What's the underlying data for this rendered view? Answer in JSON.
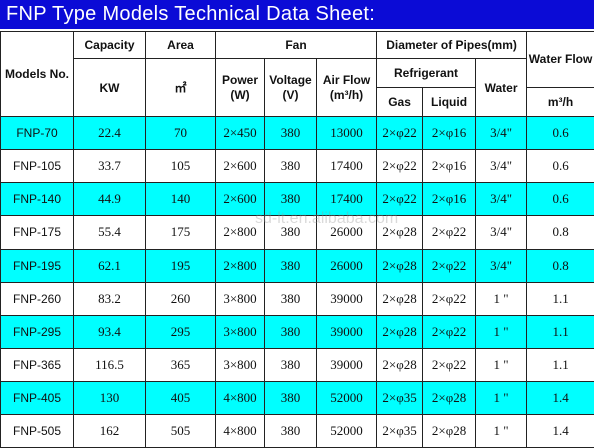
{
  "title": "FNP Type Models Technical Data Sheet:",
  "headers": {
    "models": "Models No.",
    "capacity": "Capacity",
    "capacity_unit": "KW",
    "area": "Area",
    "area_unit": "㎡",
    "fan": "Fan",
    "fan_power": "Power (W)",
    "fan_voltage": "Voltage (V)",
    "fan_airflow": "Air Flow (m³/h)",
    "pipes": "Diameter of Pipes(mm)",
    "refrigerant": "Refrigerant",
    "gas": "Gas",
    "liquid": "Liquid",
    "water": "Water",
    "water_flow": "Water Flow",
    "water_flow_unit": "m³/h"
  },
  "rows": [
    {
      "model": "FNP-70",
      "capacity": "22.4",
      "area": "70",
      "power": "2×450",
      "voltage": "380",
      "airflow": "13000",
      "gas": "2×φ22",
      "liquid": "2×φ16",
      "water": "3/4\"",
      "flow": "0.6"
    },
    {
      "model": "FNP-105",
      "capacity": "33.7",
      "area": "105",
      "power": "2×600",
      "voltage": "380",
      "airflow": "17400",
      "gas": "2×φ22",
      "liquid": "2×φ16",
      "water": "3/4\"",
      "flow": "0.6"
    },
    {
      "model": "FNP-140",
      "capacity": "44.9",
      "area": "140",
      "power": "2×600",
      "voltage": "380",
      "airflow": "17400",
      "gas": "2×φ22",
      "liquid": "2×φ16",
      "water": "3/4\"",
      "flow": "0.6"
    },
    {
      "model": "FNP-175",
      "capacity": "55.4",
      "area": "175",
      "power": "2×800",
      "voltage": "380",
      "airflow": "26000",
      "gas": "2×φ28",
      "liquid": "2×φ22",
      "water": "3/4\"",
      "flow": "0.8"
    },
    {
      "model": "FNP-195",
      "capacity": "62.1",
      "area": "195",
      "power": "2×800",
      "voltage": "380",
      "airflow": "26000",
      "gas": "2×φ28",
      "liquid": "2×φ22",
      "water": "3/4\"",
      "flow": "0.8"
    },
    {
      "model": "FNP-260",
      "capacity": "83.2",
      "area": "260",
      "power": "3×800",
      "voltage": "380",
      "airflow": "39000",
      "gas": "2×φ28",
      "liquid": "2×φ22",
      "water": "1 \"",
      "flow": "1.1"
    },
    {
      "model": "FNP-295",
      "capacity": "93.4",
      "area": "295",
      "power": "3×800",
      "voltage": "380",
      "airflow": "39000",
      "gas": "2×φ28",
      "liquid": "2×φ22",
      "water": "1 \"",
      "flow": "1.1"
    },
    {
      "model": "FNP-365",
      "capacity": "116.5",
      "area": "365",
      "power": "3×800",
      "voltage": "380",
      "airflow": "39000",
      "gas": "2×φ28",
      "liquid": "2×φ22",
      "water": "1 \"",
      "flow": "1.1"
    },
    {
      "model": "FNP-405",
      "capacity": "130",
      "area": "405",
      "power": "4×800",
      "voltage": "380",
      "airflow": "52000",
      "gas": "2×φ35",
      "liquid": "2×φ28",
      "water": "1 \"",
      "flow": "1.4"
    },
    {
      "model": "FNP-505",
      "capacity": "162",
      "area": "505",
      "power": "4×800",
      "voltage": "380",
      "airflow": "52000",
      "gas": "2×φ35",
      "liquid": "2×φ28",
      "water": "1 \"",
      "flow": "1.4"
    }
  ],
  "watermark": "sd-lt.en.alibaba.com",
  "colors": {
    "title_bg": "#0b0bd6",
    "highlight_row": "#00ffff",
    "header_blue": "#1a1ab8"
  }
}
